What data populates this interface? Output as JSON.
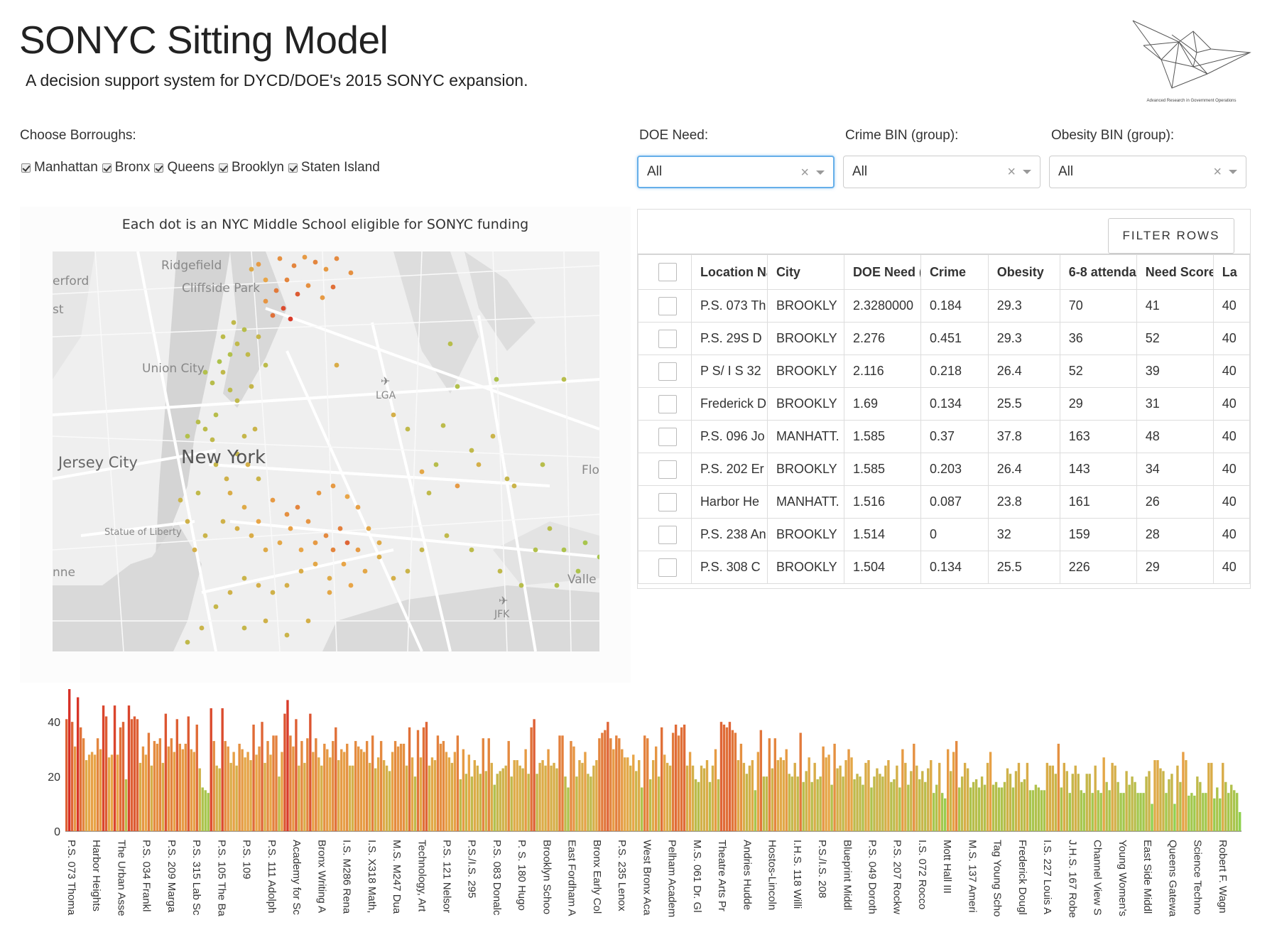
{
  "header": {
    "title": "SONYC Sitting Model",
    "subtitle": "A decision support system for DYCD/DOE's 2015 SONYC expansion.",
    "logo_caption": "Advanced Research in Government Operations"
  },
  "filters": {
    "borough_label": "Choose Borroughs:",
    "boroughs": [
      "Manhattan",
      "Bronx",
      "Queens",
      "Brooklyn",
      "Staten Island"
    ],
    "doe_need": {
      "label": "DOE Need:",
      "value": "All"
    },
    "crime_bin": {
      "label": "Crime BIN (group):",
      "value": "All"
    },
    "obesity_bin": {
      "label": "Obesity BIN (group):",
      "value": "All"
    }
  },
  "map": {
    "title": "Each dot is an NYC Middle School eligible for SONYC funding",
    "place_labels": [
      "Ridgefield",
      "Cliffside Park",
      "erford",
      "st",
      "Union City",
      "LGA",
      "Jersey City",
      "New York",
      "Flo",
      "Statue of Liberty",
      "nne",
      "Valle",
      "JFK"
    ]
  },
  "table": {
    "filter_button": "FILTER ROWS",
    "columns": [
      "Location Na",
      "City",
      "DOE Need (",
      "Crime",
      "Obesity",
      "6-8 attenda",
      "Need Score",
      "La"
    ],
    "rows": [
      [
        "P.S. 073 Th",
        "BROOKLY",
        "2.3280000",
        "0.184",
        "29.3",
        "70",
        "41",
        "40"
      ],
      [
        "P.S. 29S D",
        "BROOKLY",
        "2.276",
        "0.451",
        "29.3",
        "36",
        "52",
        "40"
      ],
      [
        "P S/ I S 32",
        "BROOKLY",
        "2.116",
        "0.218",
        "26.4",
        "52",
        "39",
        "40"
      ],
      [
        "Frederick D",
        "BROOKLY",
        "1.69",
        "0.134",
        "25.5",
        "29",
        "31",
        "40"
      ],
      [
        "P.S. 096 Jo",
        "MANHATT.",
        "1.585",
        "0.37",
        "37.8",
        "163",
        "48",
        "40"
      ],
      [
        "P.S. 202 Er",
        "BROOKLY",
        "1.585",
        "0.203",
        "26.4",
        "143",
        "34",
        "40"
      ],
      [
        "Harbor He",
        "MANHATT.",
        "1.516",
        "0.087",
        "23.8",
        "161",
        "26",
        "40"
      ],
      [
        "P.S. 238 An",
        "BROOKLY",
        "1.514",
        "0",
        "32",
        "159",
        "28",
        "40"
      ],
      [
        "P.S. 308 C",
        "BROOKLY",
        "1.504",
        "0.134",
        "25.5",
        "226",
        "29",
        "40"
      ]
    ]
  },
  "chart_data": {
    "type": "bar",
    "ylim": [
      0,
      52
    ],
    "yticks": [
      0,
      20,
      40
    ],
    "x_labels": [
      "P.S. 073 Thoma",
      "Harbor Heights",
      "The Urban Asse",
      "P.S. 034 Frankl",
      "P.S. 209 Marga",
      "P.S. 315 Lab Sc",
      "P.S. 105 The Ba",
      "P.S. 109",
      "P.S. 111 Adolph",
      "Academy for Sc",
      "Bronx Writing A",
      "I.S. M286 Rena",
      "I.S. X318 Math,",
      "M.S. M247 Dua",
      "Technology, Art",
      "P.S. 121 Nelsor",
      "P.S./I.S. 295",
      "P.S. 083 Donalc",
      "P. S. 180 Hugo",
      "Brooklyn Schoo",
      "East Fordham A",
      "Bronx Early Col",
      "P.S. 235 Lenox",
      "West Bronx Aca",
      "Pelham Academ",
      "M.S. 061 Dr. Gl",
      "Theatre Arts Pr",
      "Andries Hudde",
      "Hostos-Lincoln",
      "I.H.S. 118 Willi",
      "P.S./I.S. 208",
      "Blueprint Middl",
      "P.S. 049 Doroth",
      "P.S. 207 Rockw",
      "I.S. 072 Rocco",
      "Mott Hall III",
      "M.S. 137 Ameri",
      "Tag Young Scho",
      "Frederick Dougl",
      "I.S. 227 Louis A",
      "J.H.S. 167 Robe",
      "Channel View S",
      "Young Women's",
      "East Side Middl",
      "Queens Gatewa",
      "Science Techno",
      "Robert F. Wagn"
    ],
    "values": [
      41,
      52,
      40,
      31,
      49,
      38,
      34,
      26,
      28,
      29,
      28,
      34,
      30,
      46,
      42,
      27,
      28,
      46,
      28,
      38,
      40,
      19,
      46,
      41,
      42,
      41,
      25,
      31,
      28,
      36,
      24,
      33,
      32,
      34,
      25,
      43,
      31,
      34,
      29,
      41,
      32,
      30,
      32,
      42,
      30,
      29,
      39,
      23,
      16,
      15,
      14,
      45,
      33,
      24,
      23,
      45,
      33,
      31,
      25,
      29,
      24,
      32,
      30,
      27,
      29,
      26,
      39,
      28,
      31,
      40,
      25,
      33,
      28,
      35,
      35,
      20,
      29,
      43,
      48,
      35,
      31,
      41,
      24,
      33,
      25,
      34,
      43,
      29,
      34,
      27,
      24,
      32,
      30,
      27,
      33,
      38,
      26,
      30,
      29,
      32,
      24,
      24,
      33,
      31,
      30,
      29,
      33,
      25,
      35,
      23,
      27,
      33,
      26,
      24,
      22,
      29,
      33,
      31,
      32,
      32,
      24,
      38,
      27,
      20,
      37,
      27,
      38,
      40,
      24,
      27,
      26,
      35,
      32,
      33,
      29,
      27,
      25,
      29,
      35,
      19,
      30,
      21,
      28,
      20,
      26,
      24,
      21,
      34,
      22,
      34,
      25,
      17,
      21,
      22,
      23,
      24,
      33,
      20,
      26,
      26,
      24,
      23,
      30,
      21,
      38,
      41,
      21,
      25,
      26,
      24,
      30,
      24,
      25,
      23,
      35,
      35,
      20,
      16,
      33,
      31,
      20,
      26,
      25,
      29,
      21,
      20,
      24,
      26,
      34,
      36,
      37,
      40,
      34,
      30,
      35,
      34,
      30,
      27,
      27,
      24,
      28,
      22,
      26,
      16,
      35,
      34,
      19,
      26,
      31,
      20,
      38,
      28,
      25,
      24,
      36,
      39,
      35,
      38,
      39,
      24,
      29,
      24,
      19,
      18,
      24,
      23,
      26,
      18,
      24,
      30,
      19,
      40,
      39,
      38,
      40,
      37,
      36,
      26,
      32,
      25,
      21,
      24,
      26,
      15,
      29,
      37,
      20,
      20,
      34,
      23,
      34,
      26,
      27,
      26,
      30,
      21,
      20,
      25,
      20,
      36,
      18,
      22,
      27,
      18,
      25,
      19,
      20,
      31,
      27,
      28,
      17,
      32,
      23,
      24,
      20,
      26,
      30,
      27,
      19,
      21,
      20,
      17,
      25,
      26,
      16,
      20,
      23,
      21,
      20,
      24,
      26,
      18,
      19,
      24,
      16,
      30,
      25,
      17,
      22,
      32,
      24,
      19,
      22,
      18,
      23,
      26,
      14,
      17,
      25,
      14,
      12,
      30,
      22,
      29,
      33,
      16,
      20,
      25,
      23,
      16,
      18,
      19,
      16,
      20,
      17,
      25,
      29,
      17,
      18,
      16,
      16,
      18,
      23,
      21,
      16,
      22,
      25,
      18,
      19,
      25,
      15,
      15,
      17,
      16,
      15,
      15,
      25,
      24,
      24,
      21,
      32,
      16,
      25,
      22,
      14,
      21,
      24,
      21,
      15,
      14,
      21,
      21,
      14,
      24,
      15,
      14,
      27,
      18,
      15,
      25,
      24,
      18,
      14,
      14,
      22,
      17,
      20,
      18,
      14,
      14,
      14,
      20,
      22,
      10,
      26,
      26,
      23,
      22,
      14,
      19,
      21,
      10,
      24,
      18,
      29,
      26,
      13,
      14,
      13,
      20,
      18,
      14,
      14,
      25,
      25,
      12,
      16,
      12,
      25,
      18,
      14,
      17,
      15,
      14,
      7
    ],
    "colors": {
      "high": "#d73027",
      "mid": "#e8a547",
      "low": "#8fd14f"
    }
  }
}
